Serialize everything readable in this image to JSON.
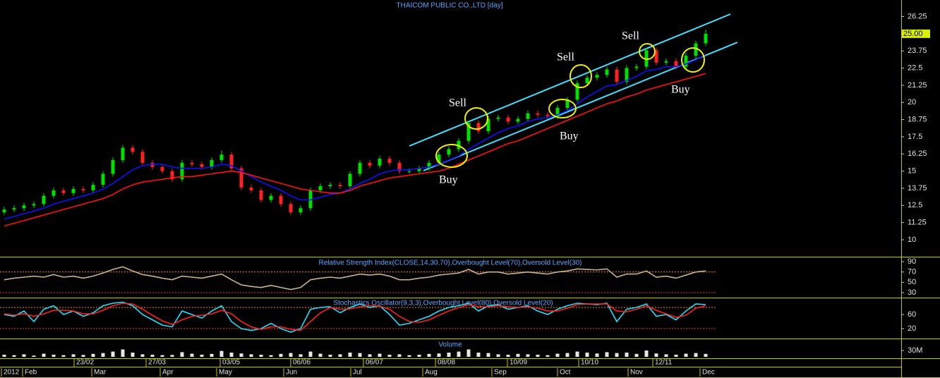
{
  "chart_data": [
    {
      "type": "candlestick",
      "title": "THAICOM PUBLIC CO.,LTD [day]",
      "up_color": "#00e000",
      "down_color": "#ff2020",
      "ylim": [
        8.87,
        27.2
      ],
      "yticks": [
        26.25,
        25,
        23.75,
        22.5,
        21.25,
        20,
        18.75,
        17.5,
        16.25,
        15,
        13.75,
        12.5,
        11.25,
        10
      ],
      "last_value": {
        "value": 25,
        "label": "25.00"
      },
      "annotations": [
        "Buy",
        "Sell",
        "Buy",
        "Sell",
        "Sell",
        "Buy"
      ],
      "x_labels": [
        "2012",
        "Feb",
        "23/02",
        "Mar",
        "27/03",
        "Apr",
        "May",
        "03/05",
        "Jun",
        "06/06",
        "Jul",
        "06/07",
        "Aug",
        "08/08",
        "Sep",
        "10/09",
        "Oct",
        "10/10",
        "Nov",
        "12/11",
        "Dec"
      ],
      "candles": [
        [
          12.0,
          12.4,
          11.8,
          12.2
        ],
        [
          12.2,
          12.5,
          12.0,
          12.3
        ],
        [
          12.3,
          12.7,
          12.1,
          12.5
        ],
        [
          12.5,
          12.8,
          12.3,
          12.6
        ],
        [
          12.6,
          13.4,
          12.4,
          13.2
        ],
        [
          13.2,
          13.8,
          13.0,
          13.6
        ],
        [
          13.6,
          13.8,
          13.2,
          13.4
        ],
        [
          13.4,
          13.9,
          13.2,
          13.7
        ],
        [
          13.7,
          13.9,
          13.4,
          13.6
        ],
        [
          13.6,
          14.2,
          13.4,
          14.0
        ],
        [
          14.0,
          15.0,
          13.8,
          14.8
        ],
        [
          14.8,
          16.0,
          14.6,
          15.8
        ],
        [
          15.8,
          16.9,
          15.6,
          16.7
        ],
        [
          16.7,
          16.9,
          16.2,
          16.4
        ],
        [
          16.4,
          16.6,
          15.4,
          15.6
        ],
        [
          15.6,
          15.8,
          15.1,
          15.3
        ],
        [
          15.3,
          15.5,
          14.8,
          15.0
        ],
        [
          15.0,
          15.2,
          14.2,
          14.4
        ],
        [
          14.4,
          15.8,
          14.2,
          15.6
        ],
        [
          15.6,
          15.8,
          15.3,
          15.5
        ],
        [
          15.5,
          15.7,
          15.1,
          15.3
        ],
        [
          15.3,
          16.0,
          15.1,
          15.8
        ],
        [
          15.8,
          16.5,
          15.6,
          16.2
        ],
        [
          16.2,
          16.4,
          15.0,
          15.2
        ],
        [
          15.2,
          15.4,
          13.6,
          13.8
        ],
        [
          13.8,
          14.0,
          13.4,
          13.6
        ],
        [
          13.6,
          13.8,
          12.7,
          12.9
        ],
        [
          12.9,
          13.4,
          12.7,
          13.2
        ],
        [
          13.2,
          13.4,
          12.4,
          12.6
        ],
        [
          12.6,
          12.8,
          11.8,
          12.0
        ],
        [
          12.0,
          12.5,
          11.8,
          12.3
        ],
        [
          12.3,
          13.8,
          12.1,
          13.6
        ],
        [
          13.6,
          14.1,
          13.4,
          13.9
        ],
        [
          13.9,
          14.2,
          13.7,
          14.0
        ],
        [
          14.0,
          14.2,
          13.7,
          13.9
        ],
        [
          13.9,
          15.0,
          13.7,
          14.8
        ],
        [
          14.8,
          15.8,
          14.6,
          15.6
        ],
        [
          15.6,
          15.8,
          15.2,
          15.4
        ],
        [
          15.4,
          16.1,
          15.2,
          15.9
        ],
        [
          15.9,
          16.1,
          15.4,
          15.6
        ],
        [
          15.6,
          15.8,
          14.8,
          15.0
        ],
        [
          15.0,
          15.2,
          14.8,
          15.0
        ],
        [
          15.0,
          15.4,
          14.8,
          15.2
        ],
        [
          15.2,
          15.8,
          15.0,
          15.6
        ],
        [
          15.6,
          16.4,
          15.4,
          16.2
        ],
        [
          16.2,
          16.8,
          16.0,
          16.6
        ],
        [
          16.6,
          17.4,
          16.4,
          17.2
        ],
        [
          17.2,
          18.7,
          17.0,
          18.5
        ],
        [
          18.5,
          18.7,
          17.7,
          17.9
        ],
        [
          17.9,
          19.0,
          17.7,
          18.8
        ],
        [
          18.8,
          19.1,
          18.6,
          18.9
        ],
        [
          18.9,
          19.1,
          18.4,
          18.6
        ],
        [
          18.6,
          19.0,
          18.4,
          18.8
        ],
        [
          18.8,
          19.4,
          18.6,
          19.2
        ],
        [
          19.2,
          19.4,
          18.9,
          19.1
        ],
        [
          19.1,
          19.3,
          18.8,
          19.0
        ],
        [
          19.0,
          19.8,
          18.8,
          19.6
        ],
        [
          19.6,
          20.4,
          19.4,
          20.2
        ],
        [
          20.2,
          21.6,
          20.0,
          21.4
        ],
        [
          21.4,
          22.0,
          21.2,
          21.8
        ],
        [
          21.8,
          22.2,
          21.6,
          22.0
        ],
        [
          22.0,
          22.6,
          21.8,
          22.4
        ],
        [
          22.4,
          22.6,
          21.3,
          21.5
        ],
        [
          21.5,
          22.7,
          21.3,
          22.5
        ],
        [
          22.5,
          22.8,
          22.3,
          22.6
        ],
        [
          22.6,
          24.0,
          22.4,
          23.8
        ],
        [
          23.8,
          24.0,
          22.7,
          22.9
        ],
        [
          22.9,
          23.2,
          22.7,
          23.0
        ],
        [
          23.0,
          23.2,
          22.4,
          22.6
        ],
        [
          22.6,
          23.6,
          22.4,
          23.4
        ],
        [
          23.4,
          24.5,
          23.2,
          24.3
        ],
        [
          24.3,
          25.3,
          24.1,
          25.0
        ]
      ],
      "series": [
        {
          "color": "#1010ff",
          "values": [
            11.5,
            11.7,
            11.9,
            12.1,
            12.3,
            12.6,
            12.8,
            13.0,
            13.2,
            13.4,
            13.7,
            14.1,
            14.6,
            15.1,
            15.4,
            15.5,
            15.5,
            15.3,
            15.2,
            15.2,
            15.2,
            15.3,
            15.5,
            15.4,
            15.0,
            14.6,
            14.2,
            13.9,
            13.6,
            13.2,
            12.9,
            12.9,
            13.1,
            13.3,
            13.4,
            13.7,
            14.1,
            14.4,
            14.8,
            15.0,
            15.1,
            15.1,
            15.2,
            15.3,
            15.5,
            15.8,
            16.1,
            16.6,
            17.0,
            17.4,
            17.8,
            18.1,
            18.3,
            18.6,
            18.8,
            18.9,
            19.1,
            19.4,
            19.9,
            20.4,
            20.8,
            21.2,
            21.3,
            21.6,
            21.9,
            22.3,
            22.4,
            22.6,
            22.6,
            22.8,
            23.1,
            23.5
          ]
        },
        {
          "color": "#ff1010",
          "values": [
            11.0,
            11.2,
            11.4,
            11.6,
            11.8,
            12.0,
            12.2,
            12.4,
            12.6,
            12.8,
            13.0,
            13.3,
            13.7,
            14.0,
            14.2,
            14.3,
            14.4,
            14.5,
            14.6,
            14.6,
            14.7,
            14.8,
            14.9,
            15.0,
            14.9,
            14.7,
            14.5,
            14.3,
            14.1,
            13.9,
            13.7,
            13.6,
            13.5,
            13.4,
            13.4,
            13.6,
            13.9,
            14.1,
            14.3,
            14.5,
            14.6,
            14.7,
            14.8,
            14.9,
            15.0,
            15.2,
            15.5,
            15.8,
            16.1,
            16.4,
            16.7,
            17.0,
            17.2,
            17.5,
            17.8,
            18.1,
            18.4,
            18.7,
            19.0,
            19.3,
            19.6,
            19.9,
            20.1,
            20.4,
            20.6,
            20.9,
            21.1,
            21.3,
            21.5,
            21.7,
            21.9,
            22.1
          ]
        }
      ]
    },
    {
      "type": "line",
      "title": "Relative Strength Index(CLOSE,14,30,70),Overbought Level(70),Oversold Level(30)",
      "ylim": [
        23.1,
        96.9
      ],
      "yticks": [
        90,
        70,
        50,
        30
      ],
      "levels": [
        {
          "value": 70,
          "color": "#ff8c00"
        },
        {
          "value": 30,
          "color": "#ff3030"
        }
      ],
      "series": [
        {
          "color": "#c8b48c",
          "values": [
            55,
            58,
            60,
            62,
            60,
            65,
            60,
            62,
            58,
            62,
            68,
            75,
            80,
            72,
            65,
            62,
            58,
            55,
            62,
            60,
            58,
            62,
            66,
            55,
            45,
            42,
            40,
            44,
            40,
            36,
            40,
            55,
            58,
            60,
            58,
            62,
            66,
            64,
            66,
            62,
            55,
            55,
            58,
            60,
            64,
            66,
            68,
            75,
            66,
            70,
            70,
            66,
            68,
            70,
            68,
            66,
            70,
            72,
            76,
            75,
            74,
            76,
            60,
            66,
            66,
            72,
            60,
            62,
            58,
            64,
            70,
            72
          ]
        }
      ]
    },
    {
      "type": "line",
      "title": "Stochastics Oscillator(9,3,3),Overbought Level(80),Oversold Level(20)",
      "ylim": [
        -4,
        104
      ],
      "yticks": [
        60,
        20
      ],
      "levels": [
        {
          "value": 80,
          "color": "#ff8c00"
        },
        {
          "value": 20,
          "color": "#ff3030"
        }
      ],
      "series": [
        {
          "color": "#20e0ff",
          "values": [
            60,
            55,
            70,
            40,
            75,
            85,
            60,
            70,
            55,
            65,
            85,
            92,
            95,
            85,
            60,
            45,
            30,
            25,
            70,
            60,
            50,
            70,
            85,
            40,
            20,
            15,
            20,
            35,
            20,
            10,
            20,
            75,
            80,
            82,
            65,
            80,
            90,
            80,
            85,
            60,
            30,
            35,
            45,
            55,
            70,
            80,
            85,
            92,
            70,
            85,
            88,
            75,
            80,
            85,
            70,
            60,
            75,
            85,
            92,
            90,
            88,
            92,
            40,
            75,
            80,
            90,
            55,
            60,
            45,
            70,
            90,
            88
          ]
        },
        {
          "color": "#ff2020",
          "values": [
            62,
            58,
            62,
            55,
            62,
            72,
            72,
            70,
            62,
            62,
            72,
            85,
            92,
            90,
            75,
            58,
            42,
            32,
            45,
            55,
            58,
            62,
            72,
            62,
            40,
            25,
            18,
            25,
            25,
            18,
            15,
            40,
            65,
            80,
            75,
            76,
            82,
            85,
            84,
            75,
            55,
            40,
            38,
            45,
            58,
            70,
            80,
            88,
            82,
            82,
            85,
            82,
            80,
            82,
            78,
            70,
            70,
            78,
            88,
            90,
            90,
            90,
            70,
            68,
            75,
            85,
            72,
            62,
            52,
            58,
            78,
            85
          ]
        }
      ]
    },
    {
      "type": "bar",
      "title": "Volume",
      "color": "#e8e8e8",
      "ylim": [
        0,
        80000000
      ],
      "yticks": [
        {
          "value": 30000000,
          "label": "30M"
        }
      ],
      "values": [
        10000000,
        8000000,
        12000000,
        6000000,
        15000000,
        10000000,
        8000000,
        12000000,
        9000000,
        14000000,
        18000000,
        25000000,
        35000000,
        20000000,
        12000000,
        10000000,
        8000000,
        9000000,
        22000000,
        15000000,
        10000000,
        14000000,
        28000000,
        20000000,
        16000000,
        12000000,
        10000000,
        8000000,
        14000000,
        18000000,
        12000000,
        25000000,
        15000000,
        10000000,
        12000000,
        20000000,
        18000000,
        12000000,
        15000000,
        10000000,
        12000000,
        8000000,
        10000000,
        14000000,
        16000000,
        20000000,
        25000000,
        35000000,
        20000000,
        18000000,
        12000000,
        10000000,
        14000000,
        12000000,
        10000000,
        8000000,
        15000000,
        18000000,
        25000000,
        20000000,
        16000000,
        22000000,
        18000000,
        20000000,
        14000000,
        30000000,
        16000000,
        12000000,
        10000000,
        15000000,
        18000000,
        14000000
      ]
    }
  ]
}
